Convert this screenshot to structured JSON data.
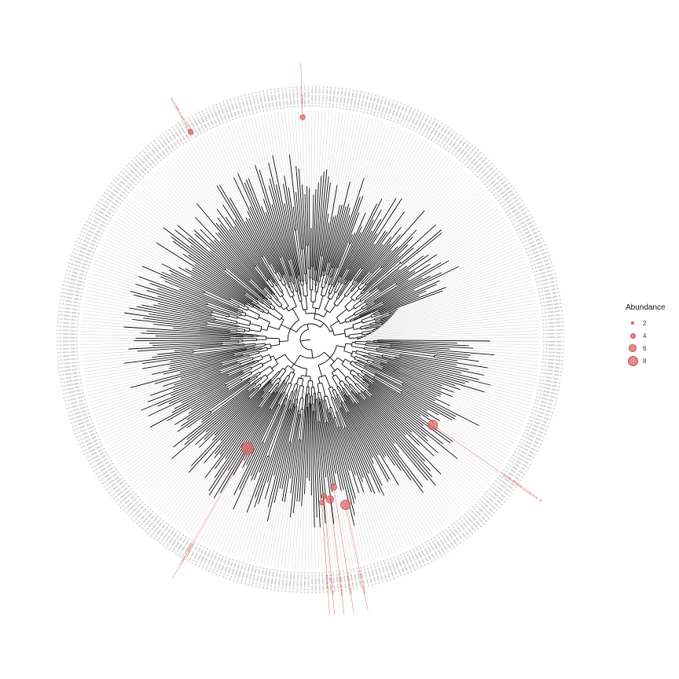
{
  "legend": {
    "title": "Abundance",
    "items": [
      {
        "label": "2",
        "value": 2
      },
      {
        "label": "4",
        "value": 4
      },
      {
        "label": "6",
        "value": 6
      },
      {
        "label": "8",
        "value": 8
      }
    ]
  },
  "colors": {
    "branch": "#000000",
    "guide_line": "#bdbdbd",
    "tip_label": "#7a7a7a",
    "highlight": "#d96868"
  },
  "highlighted_tips": [
    {
      "label": "J_002",
      "abundance": 2
    },
    {
      "label": "ea_l_8MM_I_sp(.(1)_(D-O",
      "abundance": 2
    },
    {
      "label": "ac_bu_0J5ERE_J_3(E_F_O_dF",
      "abundance": 6
    },
    {
      "label": "J_mot_1_1CE0G",
      "abundance": 6
    },
    {
      "label": "1_mot_1_1H80",
      "abundance": 4
    },
    {
      "label": "J_mot_1_1H8G",
      "abundance": 3
    },
    {
      "label": "J_mot_1_1H2",
      "abundance": 2
    },
    {
      "label": "mot_1_2",
      "abundance": 2
    },
    {
      "label": "J_mot_(_1M8G8",
      "abundance": 8
    }
  ]
}
